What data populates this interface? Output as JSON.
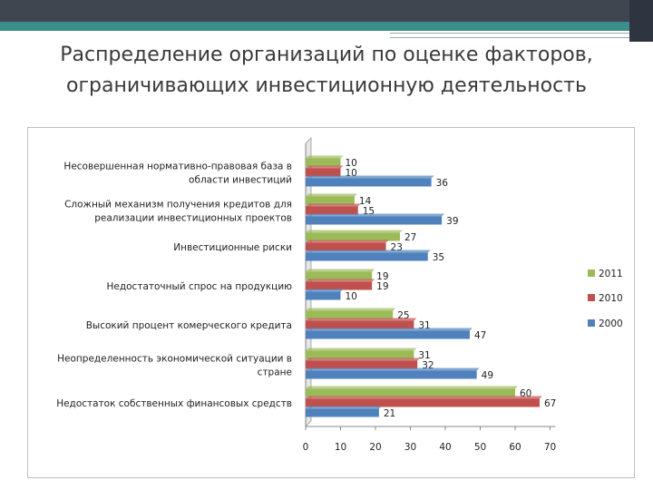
{
  "slide": {
    "title": "Распределение организаций по оценке факторов, ограничивающих инвестиционную деятельность"
  },
  "chart_data": {
    "type": "bar",
    "orientation": "horizontal",
    "categories": [
      [
        "Несовершенная нормативно-правовая база в",
        "области инвестиций"
      ],
      [
        "Сложный механизм получения кредитов для",
        "реализации инвестиционных проектов"
      ],
      [
        "Инвестиционные риски"
      ],
      [
        "Недостаточный спрос на продукцию"
      ],
      [
        "Высокий процент комерческого кредита"
      ],
      [
        "Неопределенность экономической ситуации в",
        "стране"
      ],
      [
        "Недостаток собственных финансовых средств"
      ]
    ],
    "series": [
      {
        "name": "2011",
        "color": "#9bbb59",
        "values": [
          10,
          14,
          27,
          19,
          25,
          31,
          60
        ]
      },
      {
        "name": "2010",
        "color": "#c0504d",
        "values": [
          10,
          15,
          23,
          19,
          31,
          32,
          67
        ]
      },
      {
        "name": "2000",
        "color": "#4f81bd",
        "values": [
          36,
          39,
          35,
          10,
          47,
          49,
          21
        ]
      }
    ],
    "xlim": [
      0,
      70
    ],
    "xticks": [
      0,
      10,
      20,
      30,
      40,
      50,
      60,
      70
    ],
    "grid": false,
    "legend_position": "right",
    "data_labels": true
  }
}
